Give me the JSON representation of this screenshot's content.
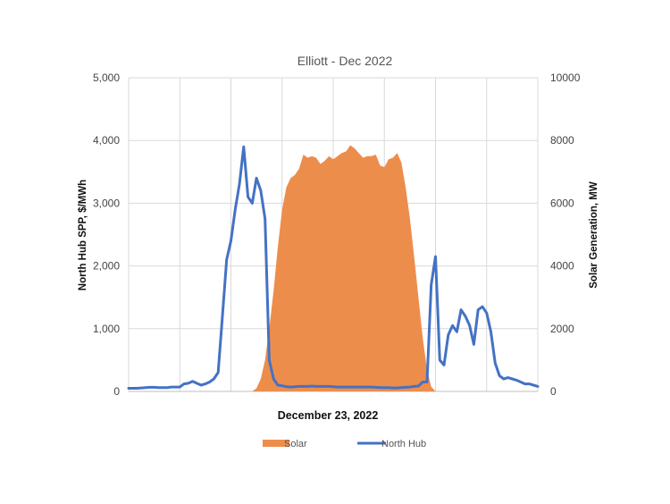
{
  "chart_data": {
    "type": "area+line",
    "title": "Elliott - Dec 2022",
    "xlabel": "December 23, 2022",
    "ylabel_left": "North Hub SPP, $/MWh",
    "ylabel_right": "Solar Generation, MW",
    "ylim_left": [
      0,
      5000
    ],
    "ylim_right": [
      0,
      10000
    ],
    "yticks_left": [
      "0",
      "1,000",
      "2,000",
      "3,000",
      "4,000",
      "5,000"
    ],
    "yticks_left_values": [
      0,
      1000,
      2000,
      3000,
      4000,
      5000
    ],
    "yticks_right": [
      "0",
      "2000",
      "4000",
      "6000",
      "8000",
      "10000"
    ],
    "yticks_right_values": [
      0,
      2000,
      4000,
      6000,
      8000,
      10000
    ],
    "x_interval_count": 96,
    "x_gridline_intervals": [
      0,
      12,
      24,
      36,
      48,
      60,
      72,
      84,
      96
    ],
    "grid": true,
    "legend_position": "bottom",
    "series": [
      {
        "name": "Solar",
        "axis": "right",
        "kind": "area",
        "color": "#ED8D4C",
        "x": [
          0,
          29,
          30,
          31,
          32,
          33,
          34,
          35,
          36,
          37,
          38,
          39,
          40,
          41,
          42,
          43,
          44,
          45,
          46,
          47,
          48,
          49,
          50,
          51,
          52,
          53,
          54,
          55,
          56,
          57,
          58,
          59,
          60,
          61,
          62,
          63,
          64,
          65,
          66,
          67,
          68,
          69,
          70,
          71,
          72,
          96
        ],
        "values": [
          0,
          0,
          100,
          400,
          1000,
          2000,
          3200,
          4600,
          5800,
          6500,
          6800,
          6900,
          7100,
          7550,
          7450,
          7500,
          7450,
          7250,
          7350,
          7500,
          7400,
          7500,
          7600,
          7650,
          7850,
          7750,
          7600,
          7450,
          7500,
          7500,
          7550,
          7200,
          7150,
          7400,
          7450,
          7600,
          7300,
          6500,
          5500,
          4300,
          3000,
          1700,
          700,
          150,
          0,
          0
        ]
      },
      {
        "name": "North Hub",
        "axis": "left",
        "kind": "line",
        "color": "#4472C4",
        "x": [
          0,
          1,
          2,
          3,
          4,
          5,
          6,
          7,
          8,
          9,
          10,
          11,
          12,
          13,
          14,
          15,
          16,
          17,
          18,
          19,
          20,
          21,
          22,
          23,
          24,
          25,
          26,
          27,
          28,
          29,
          30,
          31,
          32,
          33,
          34,
          35,
          36,
          37,
          38,
          39,
          40,
          41,
          42,
          43,
          44,
          45,
          46,
          47,
          48,
          49,
          50,
          51,
          52,
          53,
          54,
          55,
          56,
          57,
          58,
          59,
          60,
          61,
          62,
          63,
          64,
          65,
          66,
          67,
          68,
          69,
          70,
          71,
          72,
          73,
          74,
          75,
          76,
          77,
          78,
          79,
          80,
          81,
          82,
          83,
          84,
          85,
          86,
          87,
          88,
          89,
          90,
          91,
          92,
          93,
          94,
          95,
          96
        ],
        "values": [
          50,
          50,
          50,
          55,
          60,
          65,
          65,
          60,
          60,
          60,
          70,
          70,
          70,
          120,
          130,
          160,
          130,
          100,
          120,
          150,
          200,
          300,
          1200,
          2100,
          2400,
          2900,
          3300,
          3900,
          3100,
          3000,
          3400,
          3200,
          2750,
          500,
          200,
          100,
          90,
          75,
          70,
          75,
          80,
          80,
          80,
          85,
          80,
          80,
          80,
          80,
          75,
          70,
          70,
          70,
          70,
          70,
          70,
          70,
          70,
          70,
          65,
          60,
          60,
          60,
          55,
          55,
          60,
          65,
          70,
          80,
          85,
          150,
          150,
          1700,
          2150,
          500,
          420,
          900,
          1050,
          950,
          1300,
          1200,
          1050,
          750,
          1300,
          1350,
          1250,
          950,
          450,
          250,
          200,
          220,
          200,
          180,
          150,
          120,
          120,
          100,
          80
        ]
      }
    ]
  },
  "legend": {
    "items": [
      {
        "label": "Solar",
        "color": "#ED8D4C",
        "swatch": "box"
      },
      {
        "label": "North Hub",
        "color": "#4472C4",
        "swatch": "line"
      }
    ]
  }
}
